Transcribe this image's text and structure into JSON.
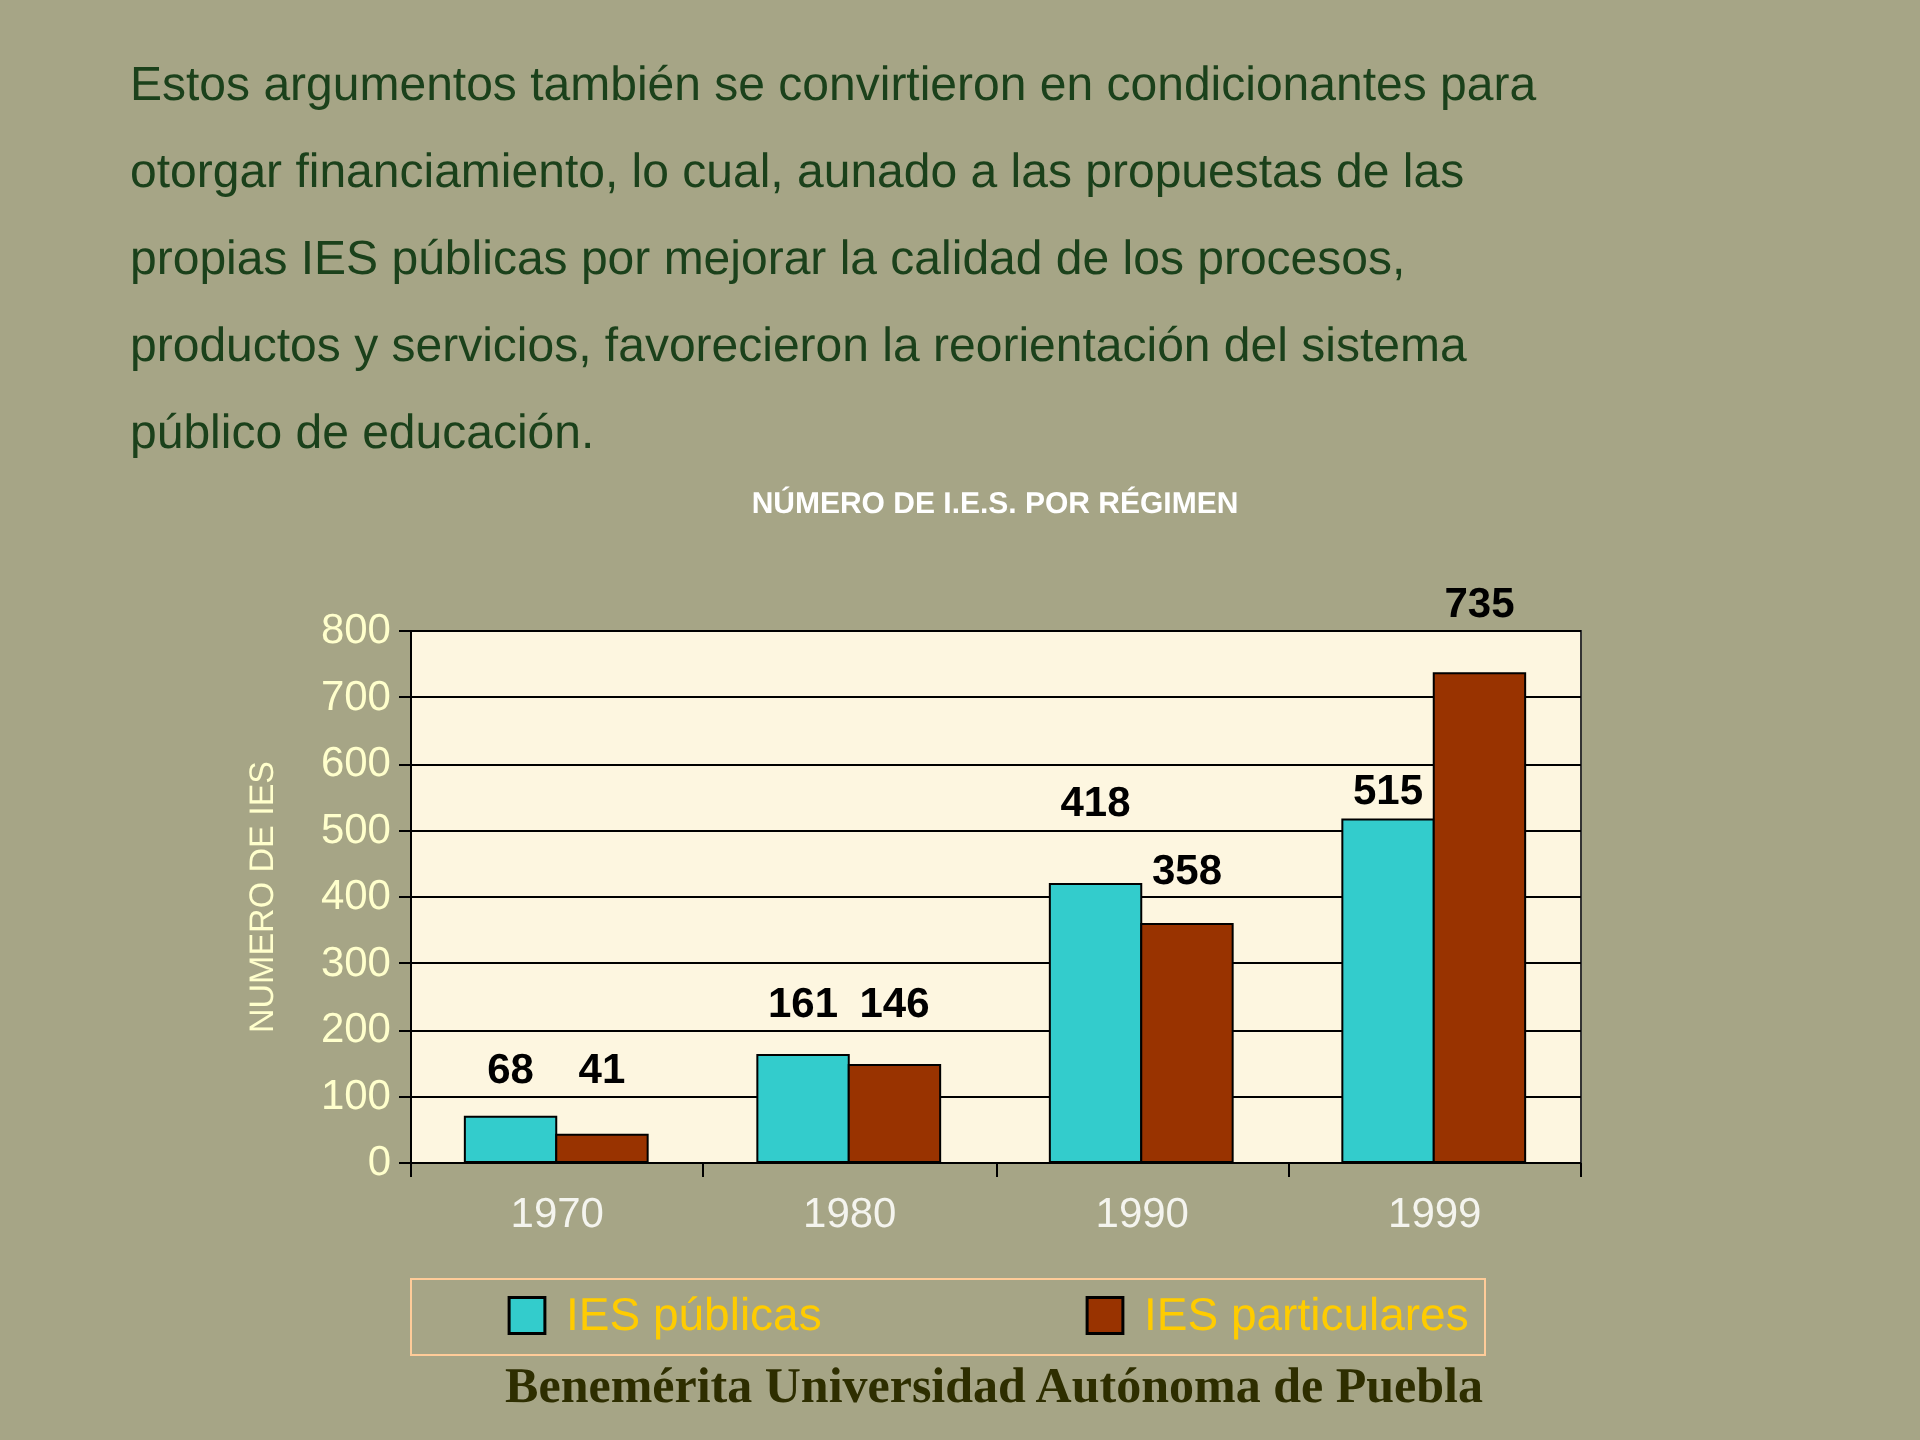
{
  "chart_data": {
    "type": "bar",
    "title": "NÚMERO DE  I.E.S. POR RÉGIMEN",
    "ylabel": "NUMERO DE IES",
    "categories": [
      "1970",
      "1980",
      "1990",
      "1999"
    ],
    "series": [
      {
        "name": "IES públicas",
        "color": "#33cccc",
        "values": [
          68,
          161,
          418,
          515
        ]
      },
      {
        "name": "IES particulares",
        "color": "#993300",
        "values": [
          41,
          146,
          358,
          735
        ]
      }
    ],
    "ylim": [
      0,
      800
    ],
    "yticks": [
      0,
      100,
      200,
      300,
      400,
      500,
      600,
      700,
      800
    ],
    "grid": "y",
    "legend": "bottom",
    "data_labels": true,
    "annotations": [
      "Estos argumentos también se convirtieron en condicionantes para otorgar  financiamiento, lo cual, aunado a las propuestas de las propias IES públicas por mejorar la calidad de los procesos, productos y servicios, favorecieron la reorientación del sistema público de educación.",
      "Benemérita Universidad Autónoma de Puebla"
    ]
  }
}
